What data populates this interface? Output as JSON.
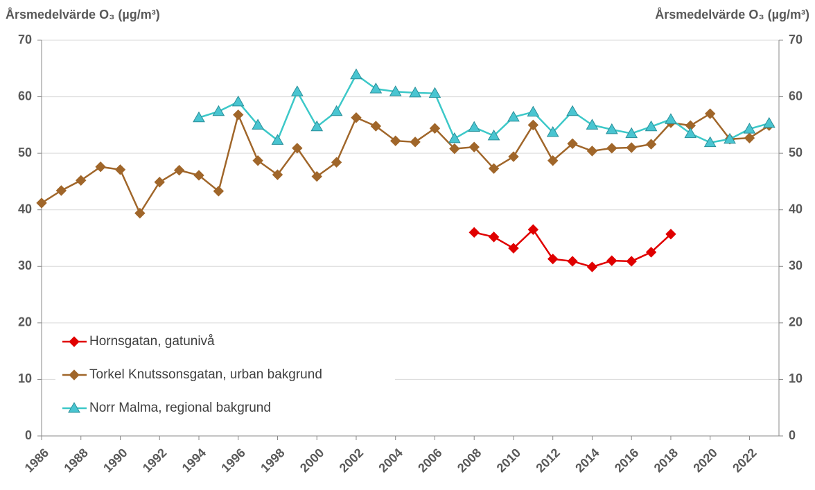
{
  "chart_data": {
    "type": "line",
    "y_label": "Årsmedelvärde O₃ (µg/m³)",
    "y2_label": "Årsmedelvärde O₃ (µg/m³)",
    "x": [
      1986,
      1987,
      1988,
      1989,
      1990,
      1991,
      1992,
      1993,
      1994,
      1995,
      1996,
      1997,
      1998,
      1999,
      2000,
      2001,
      2002,
      2003,
      2004,
      2005,
      2006,
      2007,
      2008,
      2009,
      2010,
      2011,
      2012,
      2013,
      2014,
      2015,
      2016,
      2017,
      2018,
      2019,
      2020,
      2021,
      2022,
      2023
    ],
    "xlim": [
      1986,
      2023.5
    ],
    "xticks": [
      1986,
      1988,
      1990,
      1992,
      1994,
      1996,
      1998,
      2000,
      2002,
      2004,
      2006,
      2008,
      2010,
      2012,
      2014,
      2016,
      2018,
      2020,
      2022
    ],
    "ylim": [
      0,
      70
    ],
    "yticks": [
      0,
      10,
      20,
      30,
      40,
      50,
      60,
      70
    ],
    "y2lim": [
      0,
      70
    ],
    "y2ticks": [
      0,
      10,
      20,
      30,
      40,
      50,
      60,
      70
    ],
    "grid": true,
    "legend": "lower left",
    "series": [
      {
        "name": "Hornsgatan, gatunivå",
        "color": "#e00000",
        "marker": "diamond",
        "values": [
          null,
          null,
          null,
          null,
          null,
          null,
          null,
          null,
          null,
          null,
          null,
          null,
          null,
          null,
          null,
          null,
          null,
          null,
          null,
          null,
          null,
          null,
          36.0,
          35.2,
          33.2,
          36.5,
          31.3,
          30.9,
          29.9,
          31.0,
          30.9,
          32.5,
          35.7,
          null,
          null,
          null,
          null,
          null
        ]
      },
      {
        "name": "Torkel Knutssonsgatan, urban bakgrund",
        "color": "#a0662a",
        "marker": "diamond",
        "values": [
          41.2,
          43.4,
          45.2,
          47.6,
          47.1,
          39.4,
          44.9,
          47.0,
          46.1,
          43.3,
          56.8,
          48.7,
          46.2,
          50.9,
          45.9,
          48.4,
          56.3,
          54.8,
          52.2,
          52.0,
          54.4,
          50.8,
          51.1,
          47.3,
          49.4,
          55.0,
          48.7,
          51.7,
          50.4,
          50.9,
          51.0,
          51.6,
          55.4,
          54.9,
          57.0,
          52.5,
          52.7,
          54.9
        ]
      },
      {
        "name": "Norr Malma, regional bakgrund",
        "color": "#3cc8c8",
        "marker": "triangle",
        "values": [
          null,
          null,
          null,
          null,
          null,
          null,
          null,
          null,
          56.3,
          57.4,
          59.1,
          55.0,
          52.3,
          60.9,
          54.7,
          57.4,
          63.9,
          61.4,
          60.9,
          60.7,
          60.6,
          52.6,
          54.6,
          53.1,
          56.4,
          57.3,
          53.7,
          57.4,
          55.0,
          54.2,
          53.5,
          54.7,
          56.0,
          53.5,
          51.9,
          52.5,
          54.3,
          55.3
        ]
      }
    ]
  }
}
